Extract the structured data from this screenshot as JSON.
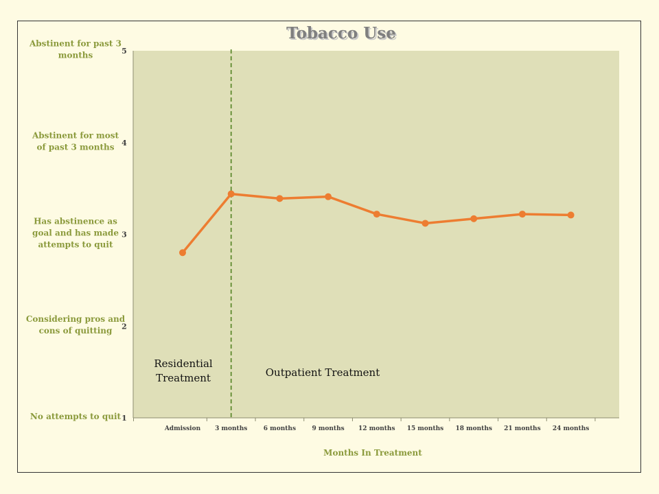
{
  "chart_data": {
    "type": "line",
    "title": "Tobacco Use",
    "xlabel": "Months In Treatment",
    "ylabel": "",
    "ylim": [
      1,
      5
    ],
    "yticks": [
      1,
      2,
      3,
      4,
      5
    ],
    "y_category_labels": [
      {
        "value": 5,
        "label": "Abstinent for past 3 months"
      },
      {
        "value": 4,
        "label": "Abstinent for most of past 3 months"
      },
      {
        "value": 3,
        "label": "Has abstinence as goal and has made attempts to quit"
      },
      {
        "value": 2,
        "label": "Considering pros and cons of quitting"
      },
      {
        "value": 1,
        "label": "No attempts to quit"
      }
    ],
    "categories": [
      "Admission",
      "3 months",
      "6 months",
      "9 months",
      "12 months",
      "15 months",
      "18 months",
      "21 months",
      "24 months"
    ],
    "series": [
      {
        "values": [
          2.8,
          3.44,
          3.39,
          3.41,
          3.22,
          3.12,
          3.17,
          3.22,
          3.21
        ]
      }
    ],
    "divider_after_category": "3 months",
    "phase_labels": [
      "Residential Treatment",
      "Outpatient Treatment"
    ],
    "grid": false,
    "colors": {
      "line": "#ed7d31",
      "plot_background": "#dfdfb8",
      "divider": "#5f8a2f"
    }
  }
}
